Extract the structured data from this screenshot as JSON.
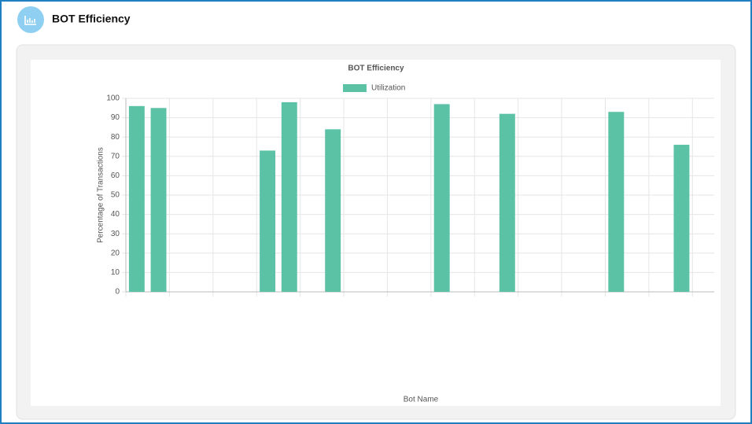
{
  "header": {
    "title": "BOT Efficiency"
  },
  "chart_data": {
    "type": "bar",
    "title": "BOT Efficiency",
    "x_label": "Bot Name",
    "y_label": "Percentage of Transactions",
    "categories": [
      null,
      null,
      null,
      null,
      null,
      null,
      null,
      null,
      null,
      null,
      null,
      null,
      null,
      null,
      null,
      null,
      null,
      null,
      null,
      null,
      null,
      null,
      null,
      null,
      null,
      null,
      null
    ],
    "series": [
      {
        "name": "Utilization",
        "color": "#5cc2a5",
        "values": [
          96,
          95,
          null,
          null,
          null,
          null,
          73,
          98,
          null,
          84,
          null,
          null,
          null,
          null,
          97,
          null,
          null,
          92,
          null,
          null,
          null,
          null,
          93,
          null,
          null,
          76,
          null
        ]
      }
    ],
    "ylim": [
      0,
      100
    ],
    "yticks": [
      0,
      10,
      20,
      30,
      40,
      50,
      60,
      70,
      80,
      90,
      100
    ],
    "grid": true,
    "legend": "top"
  }
}
